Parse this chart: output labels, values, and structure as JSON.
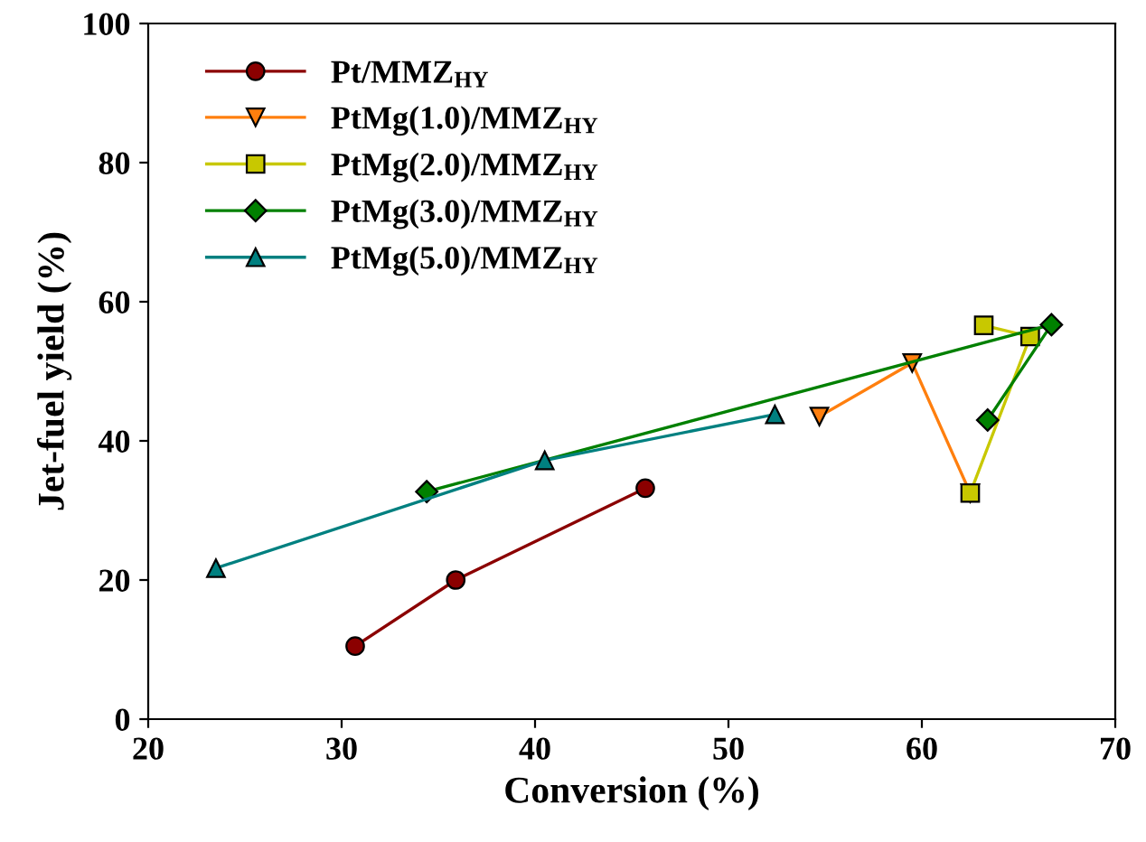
{
  "chart_data": {
    "type": "line",
    "xlabel": "Conversion (%)",
    "ylabel": "Jet-fuel yield (%)",
    "xlim": [
      20,
      70
    ],
    "ylim": [
      0,
      100
    ],
    "xticks": [
      20,
      30,
      40,
      50,
      60,
      70
    ],
    "yticks": [
      0,
      20,
      40,
      60,
      80,
      100
    ],
    "grid": false,
    "legend": "top left",
    "series": [
      {
        "name": "Pt/MMZ$_{HY}$",
        "color": "#8b0000",
        "marker": "circle",
        "x": [
          30.7,
          35.9,
          45.7
        ],
        "values": [
          10.5,
          20.0,
          33.2
        ]
      },
      {
        "name": "PtMg(1.0)/MMZ$_{HY}$",
        "color": "#ff7f0e",
        "marker": "triangle_down",
        "x": [
          54.7,
          59.5,
          62.5
        ],
        "values": [
          43.5,
          51.2,
          32.5
        ]
      },
      {
        "name": "PtMg(2.0)/MMZ$_{HY}$",
        "color": "#c8c800",
        "marker": "square",
        "x": [
          63.2,
          65.6,
          62.5
        ],
        "values": [
          56.6,
          55.0,
          32.5
        ]
      },
      {
        "name": "PtMg(3.0)/MMZ$_{HY}$",
        "color": "#008000",
        "marker": "diamond",
        "x": [
          34.4,
          66.7,
          63.4
        ],
        "values": [
          32.7,
          56.7,
          43.0
        ]
      },
      {
        "name": "PtMg(5.0)/MMZ$_{HY}$",
        "color": "#008080",
        "marker": "triangle",
        "x": [
          23.5,
          40.5,
          52.4
        ],
        "values": [
          21.7,
          37.2,
          43.8
        ]
      }
    ]
  }
}
